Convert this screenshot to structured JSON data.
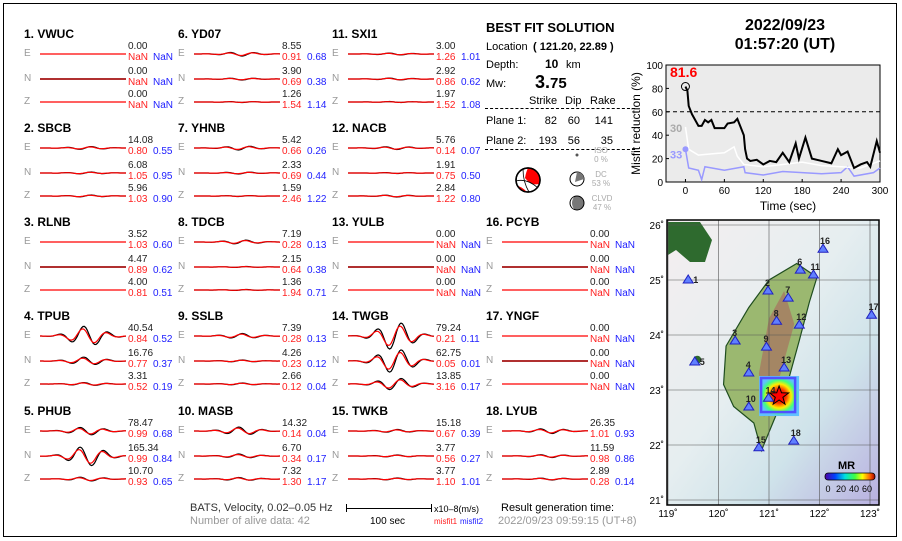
{
  "colors": {
    "synthetic": "#ff0000",
    "observed": "#000000",
    "misfit1": "#ff2020",
    "misfit2": "#2020ff",
    "background_trace": "#b03030"
  },
  "stations": [
    {
      "label": "1.  VWUC",
      "comps": [
        {
          "c": "E",
          "amp": "0.00",
          "m1": "NaN",
          "m2": "NaN"
        },
        {
          "c": "N",
          "amp": "0.00",
          "m1": "NaN",
          "m2": "NaN"
        },
        {
          "c": "Z",
          "amp": "0.00",
          "m1": "NaN",
          "m2": "NaN"
        }
      ]
    },
    {
      "label": "2.  SBCB",
      "comps": [
        {
          "c": "E",
          "amp": "14.08",
          "m1": "0.80",
          "m2": "0.55"
        },
        {
          "c": "N",
          "amp": "6.08",
          "m1": "1.05",
          "m2": "0.95"
        },
        {
          "c": "Z",
          "amp": "5.96",
          "m1": "1.03",
          "m2": "0.90"
        }
      ]
    },
    {
      "label": "3.  RLNB",
      "comps": [
        {
          "c": "E",
          "amp": "3.52",
          "m1": "1.03",
          "m2": "0.60"
        },
        {
          "c": "N",
          "amp": "4.47",
          "m1": "0.89",
          "m2": "0.62"
        },
        {
          "c": "Z",
          "amp": "4.00",
          "m1": "0.81",
          "m2": "0.51"
        }
      ]
    },
    {
      "label": "4.  TPUB",
      "comps": [
        {
          "c": "E",
          "amp": "40.54",
          "m1": "0.84",
          "m2": "0.52"
        },
        {
          "c": "N",
          "amp": "16.76",
          "m1": "0.77",
          "m2": "0.37"
        },
        {
          "c": "Z",
          "amp": "3.31",
          "m1": "0.52",
          "m2": "0.19"
        }
      ]
    },
    {
      "label": "5.  PHUB",
      "comps": [
        {
          "c": "E",
          "amp": "78.47",
          "m1": "0.99",
          "m2": "0.68"
        },
        {
          "c": "N",
          "amp": "165.34",
          "m1": "0.99",
          "m2": "0.84"
        },
        {
          "c": "Z",
          "amp": "10.70",
          "m1": "0.93",
          "m2": "0.65"
        }
      ]
    },
    {
      "label": "6.  YD07",
      "comps": [
        {
          "c": "E",
          "amp": "8.55",
          "m1": "0.91",
          "m2": "0.68"
        },
        {
          "c": "N",
          "amp": "3.90",
          "m1": "0.69",
          "m2": "0.38"
        },
        {
          "c": "Z",
          "amp": "1.26",
          "m1": "1.54",
          "m2": "1.14"
        }
      ]
    },
    {
      "label": "7.  YHNB",
      "comps": [
        {
          "c": "E",
          "amp": "5.42",
          "m1": "0.66",
          "m2": "0.26"
        },
        {
          "c": "N",
          "amp": "2.33",
          "m1": "0.69",
          "m2": "0.44"
        },
        {
          "c": "Z",
          "amp": "1.59",
          "m1": "2.46",
          "m2": "1.22"
        }
      ]
    },
    {
      "label": "8.  TDCB",
      "comps": [
        {
          "c": "E",
          "amp": "7.19",
          "m1": "0.28",
          "m2": "0.13"
        },
        {
          "c": "N",
          "amp": "2.15",
          "m1": "0.64",
          "m2": "0.38"
        },
        {
          "c": "Z",
          "amp": "1.36",
          "m1": "1.94",
          "m2": "0.71"
        }
      ]
    },
    {
      "label": "9.  SSLB",
      "comps": [
        {
          "c": "E",
          "amp": "7.39",
          "m1": "0.28",
          "m2": "0.13"
        },
        {
          "c": "N",
          "amp": "4.26",
          "m1": "0.23",
          "m2": "0.12"
        },
        {
          "c": "Z",
          "amp": "2.66",
          "m1": "0.12",
          "m2": "0.04"
        }
      ]
    },
    {
      "label": "10. MASB",
      "comps": [
        {
          "c": "E",
          "amp": "14.32",
          "m1": "0.14",
          "m2": "0.04"
        },
        {
          "c": "N",
          "amp": "6.70",
          "m1": "0.34",
          "m2": "0.17"
        },
        {
          "c": "Z",
          "amp": "7.32",
          "m1": "1.30",
          "m2": "1.17"
        }
      ]
    },
    {
      "label": "11. SXI1",
      "comps": [
        {
          "c": "E",
          "amp": "3.00",
          "m1": "1.26",
          "m2": "1.01"
        },
        {
          "c": "N",
          "amp": "2.92",
          "m1": "0.86",
          "m2": "0.62"
        },
        {
          "c": "Z",
          "amp": "1.97",
          "m1": "1.52",
          "m2": "1.08"
        }
      ]
    },
    {
      "label": "12. NACB",
      "comps": [
        {
          "c": "E",
          "amp": "5.76",
          "m1": "0.14",
          "m2": "0.07"
        },
        {
          "c": "N",
          "amp": "1.91",
          "m1": "0.75",
          "m2": "0.50"
        },
        {
          "c": "Z",
          "amp": "2.84",
          "m1": "1.22",
          "m2": "0.80"
        }
      ]
    },
    {
      "label": "13. YULB",
      "comps": [
        {
          "c": "E",
          "amp": "0.00",
          "m1": "NaN",
          "m2": "NaN"
        },
        {
          "c": "N",
          "amp": "0.00",
          "m1": "NaN",
          "m2": "NaN"
        },
        {
          "c": "Z",
          "amp": "0.00",
          "m1": "NaN",
          "m2": "NaN"
        }
      ]
    },
    {
      "label": "14. TWGB",
      "comps": [
        {
          "c": "E",
          "amp": "79.24",
          "m1": "0.21",
          "m2": "0.11"
        },
        {
          "c": "N",
          "amp": "62.75",
          "m1": "0.05",
          "m2": "0.01"
        },
        {
          "c": "Z",
          "amp": "13.85",
          "m1": "3.16",
          "m2": "0.17"
        }
      ]
    },
    {
      "label": "15. TWKB",
      "comps": [
        {
          "c": "E",
          "amp": "15.18",
          "m1": "0.67",
          "m2": "0.39"
        },
        {
          "c": "N",
          "amp": "3.77",
          "m1": "0.56",
          "m2": "0.27"
        },
        {
          "c": "Z",
          "amp": "3.77",
          "m1": "1.10",
          "m2": "1.01"
        }
      ]
    },
    {
      "label": "16. PCYB",
      "comps": [
        {
          "c": "E",
          "amp": "0.00",
          "m1": "NaN",
          "m2": "NaN"
        },
        {
          "c": "N",
          "amp": "0.00",
          "m1": "NaN",
          "m2": "NaN"
        },
        {
          "c": "Z",
          "amp": "0.00",
          "m1": "NaN",
          "m2": "NaN"
        }
      ]
    },
    {
      "label": "17. YNGF",
      "comps": [
        {
          "c": "E",
          "amp": "0.00",
          "m1": "NaN",
          "m2": "NaN"
        },
        {
          "c": "N",
          "amp": "0.00",
          "m1": "NaN",
          "m2": "NaN"
        },
        {
          "c": "Z",
          "amp": "0.00",
          "m1": "NaN",
          "m2": "NaN"
        }
      ]
    },
    {
      "label": "18. LYUB",
      "comps": [
        {
          "c": "E",
          "amp": "26.35",
          "m1": "1.01",
          "m2": "0.93"
        },
        {
          "c": "N",
          "amp": "11.59",
          "m1": "0.98",
          "m2": "0.86"
        },
        {
          "c": "Z",
          "amp": "2.89",
          "m1": "0.28",
          "m2": "0.14"
        }
      ]
    }
  ],
  "footer": {
    "network": "BATS, Velocity, 0.02–0.05 Hz",
    "alive": "Number of alive data: 42",
    "scale_bar": "100 sec",
    "units": "x10–8(m/s)",
    "misfit1": "misfit1",
    "misfit2": "misfit2",
    "gen_label": "Result generation time:",
    "gen_time": "2022/09/23 09:59:15 (UT+8)"
  },
  "solution": {
    "title": "BEST FIT SOLUTION",
    "location_label": "Location",
    "location": "( 121.20,  22.89 )",
    "depth_label": "Depth:",
    "depth": "10",
    "depth_unit": "km",
    "mw_label": "Mw:",
    "mw_int": "3.",
    "mw_dec": "75",
    "headers": [
      "Strike",
      "Dip",
      "Rake"
    ],
    "planes": [
      {
        "label": "Plane 1:",
        "strike": "82",
        "dip": "60",
        "rake": "141"
      },
      {
        "label": "Plane 2:",
        "strike": "193",
        "dip": "56",
        "rake": "35"
      }
    ],
    "iso": {
      "label": "ISO",
      "pct": "0  %"
    },
    "dc": {
      "label": "DC",
      "pct": "53 %"
    },
    "clvd": {
      "label": "CLVD",
      "pct": "47 %"
    }
  },
  "event": {
    "date": "2022/09/23",
    "time": "01:57:20  (UT)"
  },
  "chart_data": {
    "type": "line",
    "xlabel": "Time (sec)",
    "ylabel": "Misfit reduction (%)",
    "xlim": [
      -30,
      300
    ],
    "ylim": [
      0,
      100
    ],
    "xticks": [
      0,
      60,
      120,
      180,
      240,
      300
    ],
    "yticks": [
      0,
      20,
      40,
      60,
      80,
      100
    ],
    "threshold": 60,
    "peak_label": "81.6",
    "peak": {
      "x": 0,
      "y": 81.6
    },
    "series": [
      {
        "color": "#000000",
        "x": [
          0,
          3,
          5,
          10,
          15,
          20,
          25,
          30,
          35,
          40,
          45,
          60,
          65,
          75,
          80,
          85,
          90,
          92,
          95,
          100,
          110,
          120,
          130,
          140,
          150,
          160,
          170,
          175,
          185,
          195,
          210,
          225,
          235,
          240,
          250,
          260,
          270,
          280,
          285,
          295,
          300
        ],
        "y": [
          81.6,
          78,
          65,
          58,
          53,
          48,
          48,
          53,
          51,
          53,
          46,
          46,
          50,
          51,
          54,
          47,
          40,
          28,
          20,
          18,
          19,
          15,
          18,
          17,
          25,
          17,
          33,
          20,
          38,
          20,
          18,
          16,
          28,
          23,
          26,
          12,
          15,
          17,
          13,
          35,
          25
        ]
      },
      {
        "label": "30",
        "color": "#ffffff",
        "x": [
          0,
          5,
          20,
          40,
          60,
          75,
          80,
          90,
          120,
          150,
          180,
          210,
          240,
          270,
          300
        ],
        "y": [
          47,
          28,
          23,
          24,
          25,
          30,
          22,
          15,
          13,
          15,
          17,
          14,
          13,
          12,
          18
        ]
      },
      {
        "label": "33",
        "color": "#9999ff",
        "x": [
          0,
          5,
          20,
          25,
          30,
          60,
          90,
          92,
          120,
          150,
          180,
          210,
          240,
          250,
          260,
          290,
          300
        ],
        "y": [
          28,
          12,
          10,
          2,
          13,
          10,
          13,
          8,
          6,
          9,
          8,
          7,
          8,
          13,
          5,
          8,
          12
        ]
      }
    ]
  },
  "map": {
    "lon_ticks": [
      "119˚",
      "120˚",
      "121˚",
      "122˚",
      "123˚"
    ],
    "lat_ticks": [
      "26˚",
      "25˚",
      "24˚",
      "23˚",
      "22˚",
      "21˚"
    ],
    "epicenter": {
      "lon": 121.2,
      "lat": 22.89
    },
    "colorbar_title": "MR",
    "colorbar_ticks": [
      "0",
      "20",
      "40",
      "60"
    ],
    "stations": [
      {
        "n": "1",
        "lon": 119.4,
        "lat": 25.0
      },
      {
        "n": "2",
        "lon": 120.98,
        "lat": 24.8
      },
      {
        "n": "3",
        "lon": 120.33,
        "lat": 23.89
      },
      {
        "n": "4",
        "lon": 120.6,
        "lat": 23.31
      },
      {
        "n": "5",
        "lon": 119.53,
        "lat": 23.51
      },
      {
        "n": "6",
        "lon": 121.62,
        "lat": 25.18
      },
      {
        "n": "7",
        "lon": 121.38,
        "lat": 24.67
      },
      {
        "n": "8",
        "lon": 121.15,
        "lat": 24.25
      },
      {
        "n": "9",
        "lon": 120.95,
        "lat": 23.78
      },
      {
        "n": "10",
        "lon": 120.6,
        "lat": 22.69
      },
      {
        "n": "11",
        "lon": 121.88,
        "lat": 25.09
      },
      {
        "n": "12",
        "lon": 121.6,
        "lat": 24.18
      },
      {
        "n": "13",
        "lon": 121.3,
        "lat": 23.4
      },
      {
        "n": "14",
        "lon": 120.99,
        "lat": 22.85
      },
      {
        "n": "15",
        "lon": 120.8,
        "lat": 21.95
      },
      {
        "n": "16",
        "lon": 122.07,
        "lat": 25.56
      },
      {
        "n": "17",
        "lon": 123.03,
        "lat": 24.36
      },
      {
        "n": "18",
        "lon": 121.49,
        "lat": 22.07
      }
    ]
  }
}
